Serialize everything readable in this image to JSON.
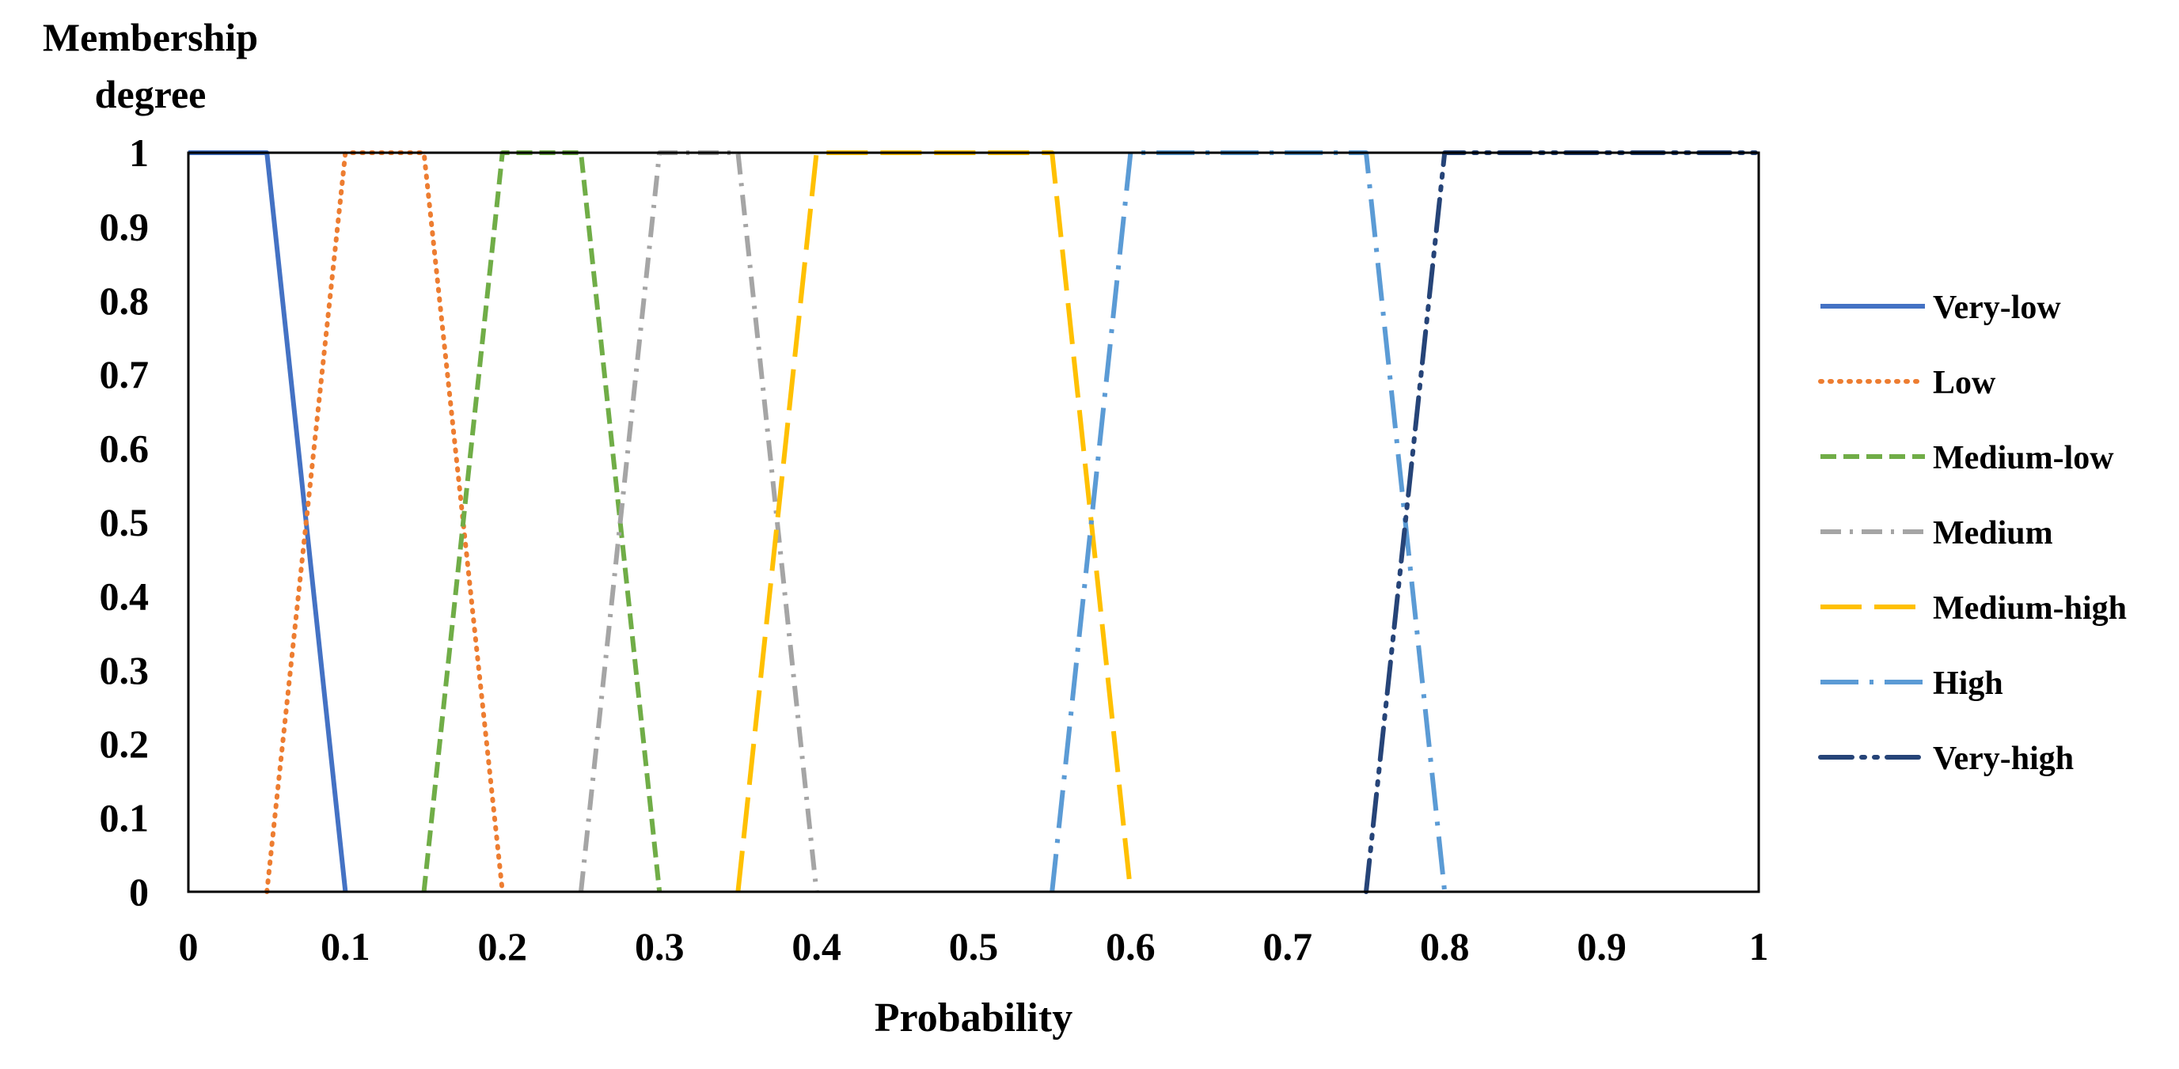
{
  "chart_data": {
    "type": "line",
    "title": "",
    "xlabel": "Probability",
    "ylabel_lines": [
      "Membership",
      "degree"
    ],
    "xlim": [
      0,
      1
    ],
    "ylim": [
      0,
      1
    ],
    "x_ticks": [
      "0",
      "0.1",
      "0.2",
      "0.3",
      "0.4",
      "0.5",
      "0.6",
      "0.7",
      "0.8",
      "0.9",
      "1"
    ],
    "y_ticks": [
      "0",
      "0.1",
      "0.2",
      "0.3",
      "0.4",
      "0.5",
      "0.6",
      "0.7",
      "0.8",
      "0.9",
      "1"
    ],
    "grid": false,
    "legend_position": "right",
    "series": [
      {
        "name": "Very-low",
        "color": "#4472C4",
        "dash": "solid",
        "points": [
          [
            0,
            1
          ],
          [
            0.05,
            1
          ],
          [
            0.1,
            0
          ]
        ]
      },
      {
        "name": "Low",
        "color": "#ED7D31",
        "dash": "dot",
        "points": [
          [
            0.05,
            0
          ],
          [
            0.1,
            1
          ],
          [
            0.15,
            1
          ],
          [
            0.2,
            0
          ]
        ]
      },
      {
        "name": "Medium-low",
        "color": "#70AD47",
        "dash": "dash",
        "points": [
          [
            0.15,
            0
          ],
          [
            0.2,
            1
          ],
          [
            0.25,
            1
          ],
          [
            0.3,
            0
          ]
        ]
      },
      {
        "name": "Medium",
        "color": "#A5A5A5",
        "dash": "dash-dot",
        "points": [
          [
            0.25,
            0
          ],
          [
            0.3,
            1
          ],
          [
            0.35,
            1
          ],
          [
            0.4,
            0
          ]
        ]
      },
      {
        "name": "Medium-high",
        "color": "#FFC000",
        "dash": "long-dash",
        "points": [
          [
            0.35,
            0
          ],
          [
            0.4,
            1
          ],
          [
            0.55,
            1
          ],
          [
            0.6,
            0
          ]
        ]
      },
      {
        "name": "High",
        "color": "#5B9BD5",
        "dash": "long-dash-dot",
        "points": [
          [
            0.55,
            0
          ],
          [
            0.6,
            1
          ],
          [
            0.75,
            1
          ],
          [
            0.8,
            0
          ]
        ]
      },
      {
        "name": "Very-high",
        "color": "#264478",
        "dash": "long-dash-dot-dot",
        "points": [
          [
            0.75,
            0
          ],
          [
            0.8,
            1
          ],
          [
            1,
            1
          ]
        ]
      }
    ]
  }
}
